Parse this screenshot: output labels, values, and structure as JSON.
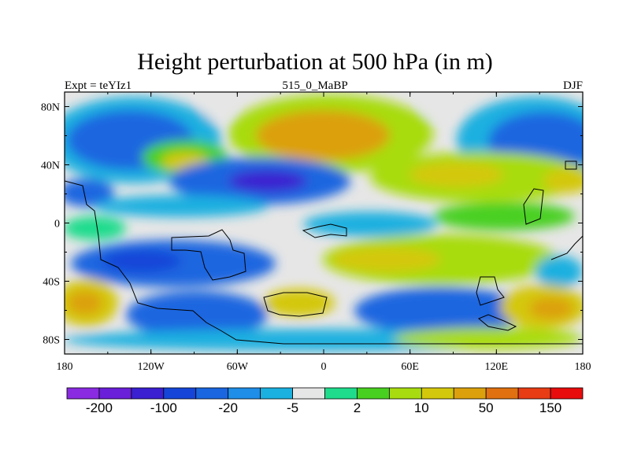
{
  "chart_data": {
    "type": "heatmap",
    "title": "Height perturbation at 500 hPa (in m)",
    "subtitle_left": "Expt = teYIz1",
    "subtitle_center": "515_0_MaBP",
    "subtitle_right": "DJF",
    "x_ticks": [
      "180",
      "120W",
      "60W",
      "0",
      "60E",
      "120E",
      "180"
    ],
    "y_ticks": [
      "80N",
      "40N",
      "0",
      "40S",
      "80S"
    ],
    "xlim": [
      -180,
      180
    ],
    "ylim": [
      -90,
      90
    ],
    "colorbar": {
      "colors": [
        "#8a2be2",
        "#6a1fd8",
        "#3a20d0",
        "#1545d8",
        "#1a66e0",
        "#1e8ee8",
        "#1ab0e0",
        "#e6e6e6",
        "#1edc8c",
        "#48d020",
        "#a8dc10",
        "#d4c80c",
        "#dca00c",
        "#e07010",
        "#e83c14",
        "#e80c0c"
      ],
      "labels": [
        "-200",
        "-100",
        "-20",
        "-5",
        "2",
        "10",
        "50",
        "150"
      ]
    }
  }
}
